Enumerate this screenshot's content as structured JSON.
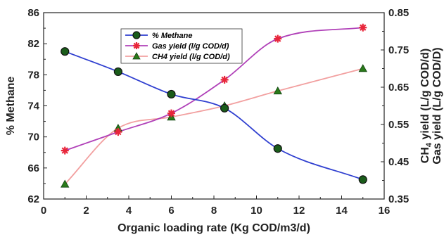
{
  "chart_data": {
    "type": "line",
    "xlabel": "Organic loading rate (Kg COD/m3/d)",
    "ylabel_left": "% Methane",
    "ylabel_right_1": "CH",
    "ylabel_right_1_sub": "4",
    "ylabel_right_1_rest": " yield (L/g COD/d)",
    "ylabel_right_2": "Gas yield (L/g COD/D)",
    "xlim": [
      0,
      16
    ],
    "ylim_left": [
      62,
      86
    ],
    "ylim_right": [
      0.35,
      0.85
    ],
    "x_ticks": [
      "0",
      "2",
      "4",
      "6",
      "8",
      "10",
      "12",
      "14",
      "16"
    ],
    "y_left_ticks": [
      "62",
      "66",
      "70",
      "74",
      "78",
      "82",
      "86"
    ],
    "y_right_ticks": [
      "0.35",
      "0.45",
      "0.55",
      "0.65",
      "0.75",
      "0.85"
    ],
    "series": [
      {
        "name": "% Methane",
        "axis": "left",
        "color": "#2f3fd0",
        "marker": "circle",
        "marker_color": "#1a5c1a",
        "x": [
          1,
          3.5,
          6,
          8.5,
          11,
          15
        ],
        "values": [
          81.0,
          78.4,
          75.5,
          73.7,
          68.5,
          64.5
        ]
      },
      {
        "name": "Gas yield (l/g COD/d)",
        "axis": "right",
        "color": "#b040b8",
        "marker": "asterisk",
        "marker_color": "#e8263a",
        "x": [
          1,
          3.5,
          6,
          8.5,
          11,
          15
        ],
        "values": [
          0.48,
          0.53,
          0.58,
          0.67,
          0.78,
          0.81
        ]
      },
      {
        "name": "CH4 yield (l/g COD/d)",
        "axis": "right",
        "color": "#f2a0a0",
        "marker": "triangle",
        "marker_color": "#2a7a1a",
        "x": [
          1,
          3.5,
          6,
          8.5,
          11,
          15
        ],
        "values": [
          0.39,
          0.54,
          0.57,
          0.6,
          0.64,
          0.7
        ]
      }
    ],
    "legend_position": "top-left-inside",
    "grid": false
  }
}
